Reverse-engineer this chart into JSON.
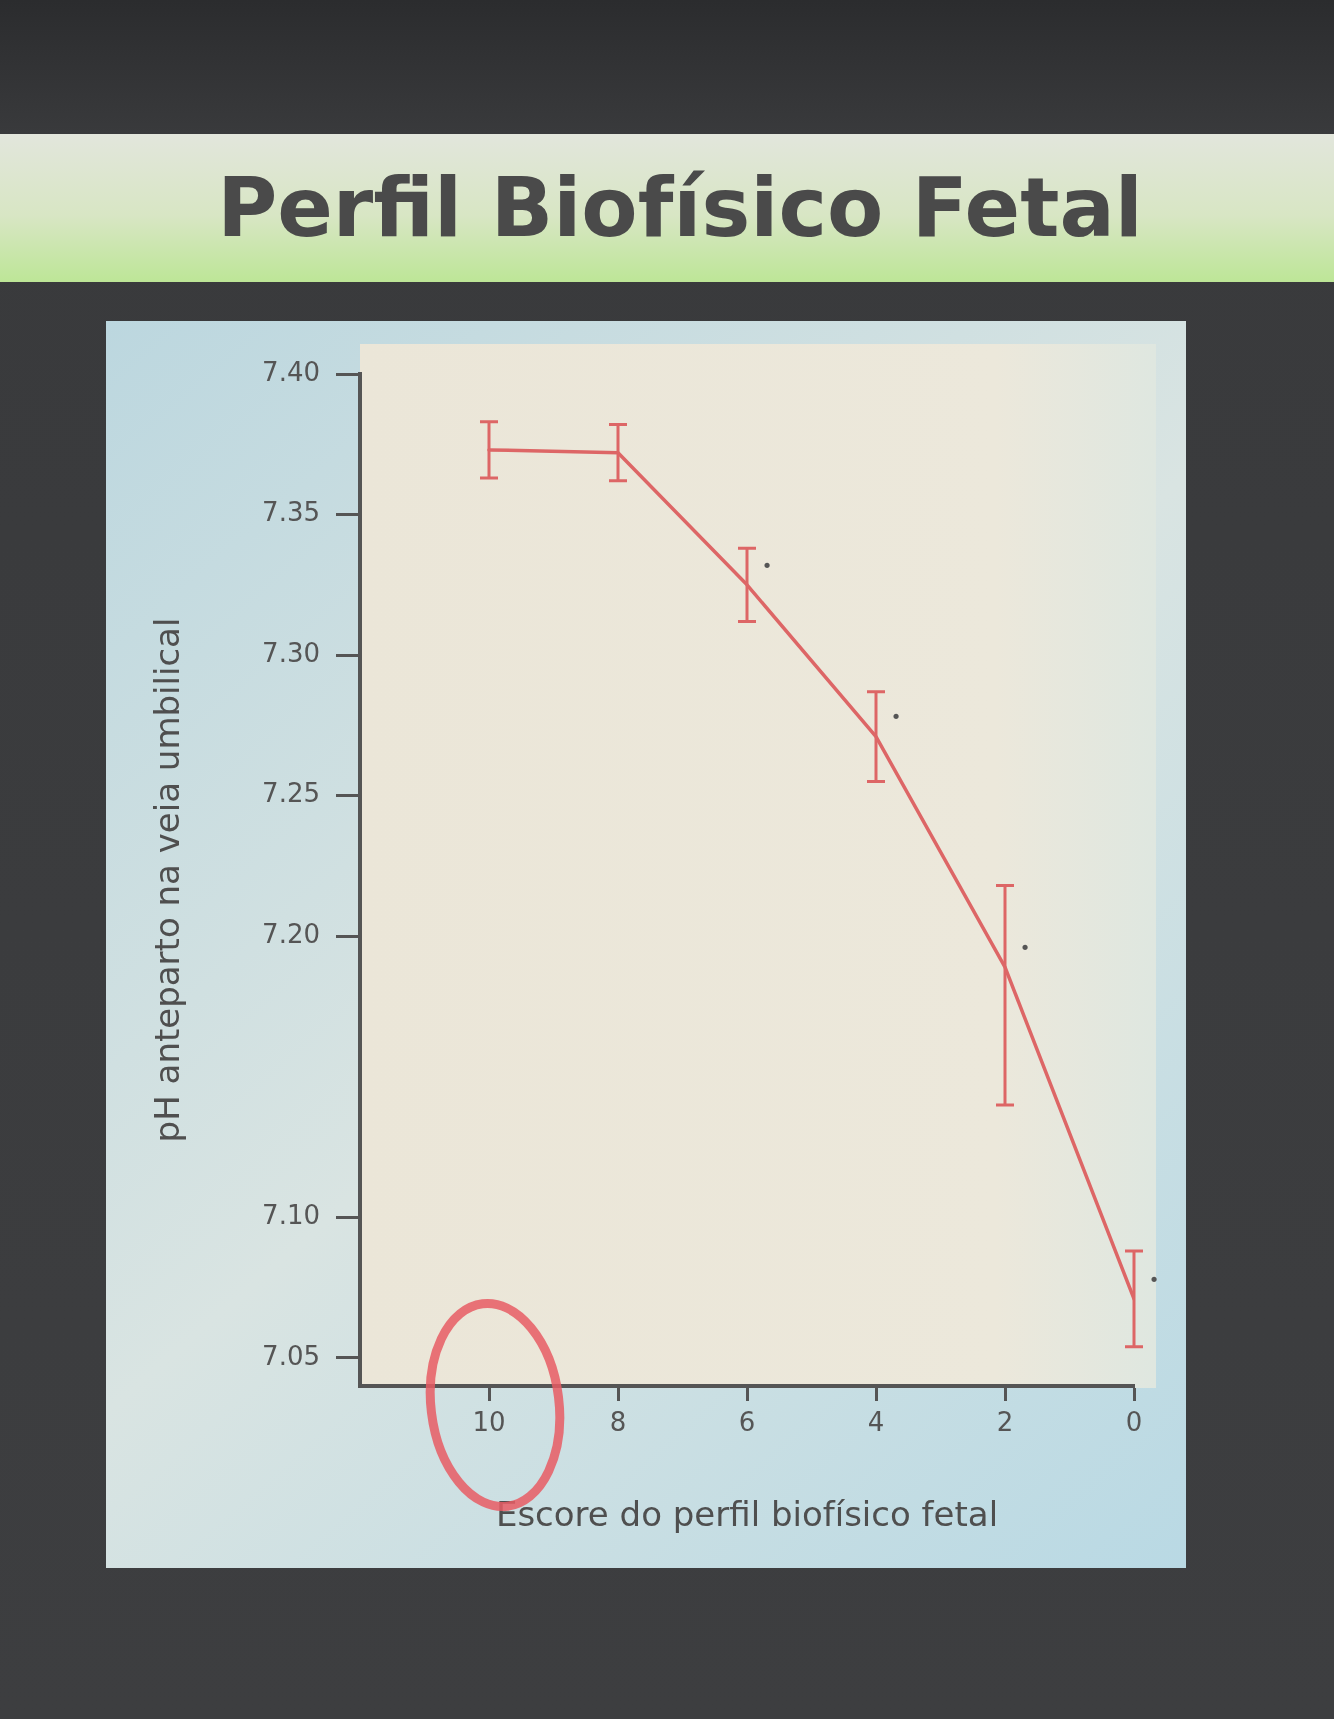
{
  "chart_data": {
    "type": "line",
    "title": "Perfil Biofísico Fetal",
    "xlabel": "Escore do perfil biofísico fetal",
    "ylabel": "pH anteparto na veia umbilical",
    "x": [
      10,
      8,
      6,
      4,
      2,
      0
    ],
    "series": [
      {
        "color": "#dd6666",
        "values": [
          7.373,
          7.372,
          7.325,
          7.271,
          7.189,
          7.071
        ],
        "errors": [
          0.01,
          0.01,
          0.013,
          0.016,
          [
            7.14,
            7.218
          ],
          0.017
        ]
      }
    ],
    "xlim": [
      12,
      0
    ],
    "xticks": [
      10,
      8,
      6,
      4,
      2,
      0
    ],
    "ylim": [
      7.04,
      7.4
    ],
    "yticks": [
      {
        "value": 7.4,
        "label": "7.40"
      },
      7.35,
      {
        "value": 7.3,
        "label": "7.30"
      },
      7.25,
      {
        "value": 7.2,
        "label": "7.20"
      },
      {
        "value": 7.1,
        "label": "7.10"
      },
      7.05
    ],
    "marker": "none",
    "annotations": [
      {
        "text": "•",
        "x": 6,
        "y": 7.325
      },
      {
        "text": "•",
        "x": 4,
        "y": 7.271
      },
      {
        "text": "•",
        "x": 2,
        "y": 7.189
      },
      {
        "text": "•",
        "x": 0,
        "y": 7.071
      }
    ]
  }
}
